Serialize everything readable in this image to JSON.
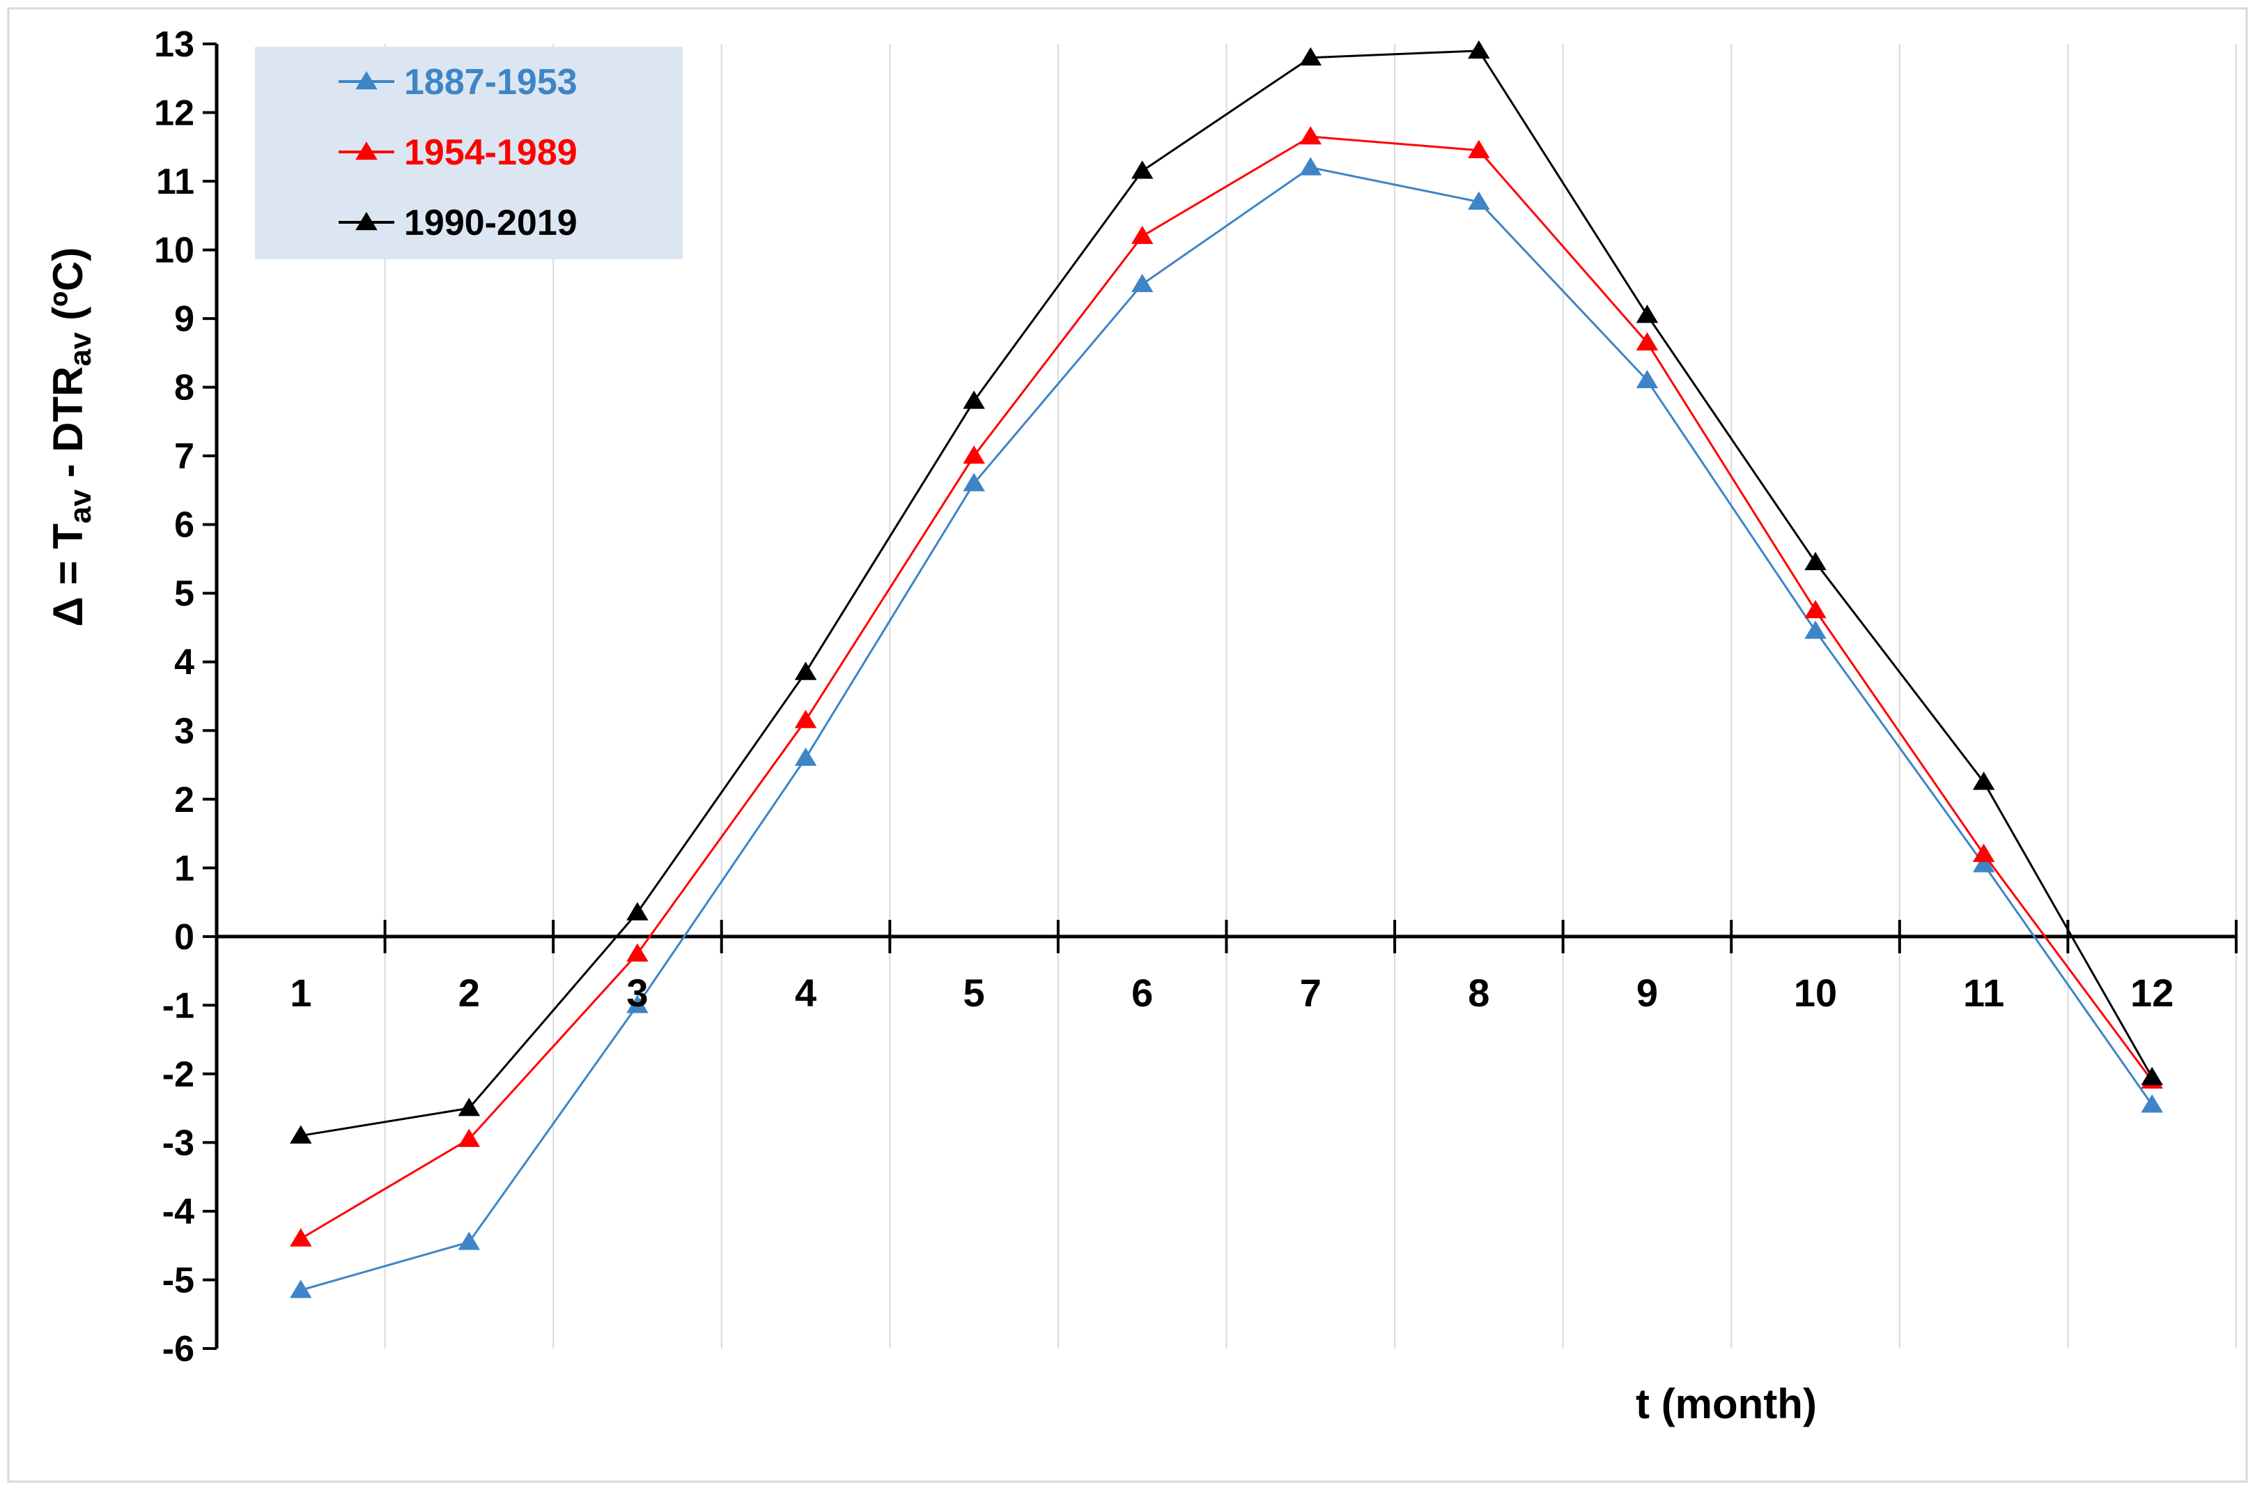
{
  "chart_data": {
    "type": "line",
    "title": "",
    "xlabel": "t (month)",
    "ylabel": {
      "prefix": "Δ = T",
      "sub1": "av",
      "middle": " - DTR",
      "sub2": "av",
      "suffix": " (ºC)"
    },
    "x": [
      1,
      2,
      3,
      4,
      5,
      6,
      7,
      8,
      9,
      10,
      11,
      12
    ],
    "xticks": [
      "1",
      "2",
      "3",
      "4",
      "5",
      "6",
      "7",
      "8",
      "9",
      "10",
      "11",
      "12"
    ],
    "ylim": [
      -6,
      13
    ],
    "yticks": [
      "13",
      "12",
      "11",
      "10",
      "9",
      "8",
      "7",
      "6",
      "5",
      "4",
      "3",
      "2",
      "1",
      "0",
      "-1",
      "-2",
      "-3",
      "-4",
      "-5",
      "-6"
    ],
    "grid": "vertical",
    "legend_position": "top-left",
    "series": [
      {
        "name": "1887-1953",
        "color": "#3d85c6",
        "marker": "triangle",
        "values": [
          -5.15,
          -4.45,
          -1.0,
          2.6,
          6.6,
          9.5,
          11.2,
          10.7,
          8.1,
          4.45,
          1.05,
          -2.45
        ]
      },
      {
        "name": "1954-1989",
        "color": "#ff0000",
        "marker": "triangle",
        "values": [
          -4.4,
          -2.95,
          -0.25,
          3.15,
          7.0,
          10.2,
          11.65,
          11.45,
          8.65,
          4.75,
          1.2,
          -2.1
        ]
      },
      {
        "name": "1990-2019",
        "color": "#000000",
        "marker": "triangle",
        "values": [
          -2.9,
          -2.5,
          0.35,
          3.85,
          7.8,
          11.15,
          12.8,
          12.9,
          9.05,
          5.45,
          2.25,
          -2.05
        ]
      }
    ]
  }
}
